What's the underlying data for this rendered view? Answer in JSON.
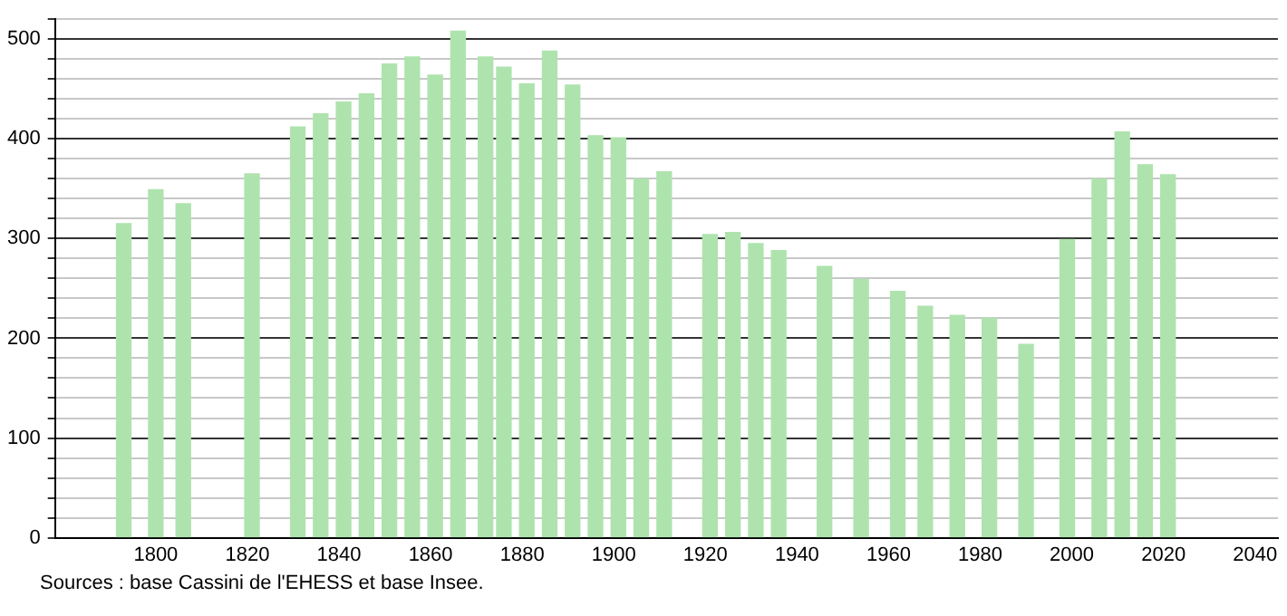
{
  "chart_data": {
    "type": "bar",
    "x": [
      1793,
      1800,
      1806,
      1821,
      1831,
      1836,
      1841,
      1846,
      1851,
      1856,
      1861,
      1866,
      1872,
      1876,
      1881,
      1886,
      1891,
      1896,
      1901,
      1906,
      1911,
      1921,
      1926,
      1931,
      1936,
      1946,
      1954,
      1962,
      1968,
      1975,
      1982,
      1990,
      1999,
      2006,
      2011,
      2016,
      2021
    ],
    "values": [
      315,
      349,
      335,
      365,
      412,
      425,
      437,
      445,
      475,
      482,
      464,
      508,
      482,
      472,
      455,
      488,
      454,
      403,
      401,
      360,
      367,
      304,
      306,
      295,
      288,
      272,
      259,
      247,
      232,
      223,
      220,
      194,
      299,
      360,
      407,
      374,
      364
    ],
    "color": "#aee3ae",
    "xlim": [
      1778,
      2045
    ],
    "xticks": [
      1800,
      1820,
      1840,
      1860,
      1880,
      1900,
      1920,
      1940,
      1960,
      1980,
      2000,
      2020,
      2040
    ],
    "ylim": [
      0,
      520
    ],
    "yticks": [
      0,
      {
        "value": 20,
        "label": null
      },
      {
        "value": 40,
        "label": null
      },
      {
        "value": 60,
        "label": null
      },
      {
        "value": 80,
        "label": null
      },
      100,
      {
        "value": 120,
        "label": null
      },
      {
        "value": 140,
        "label": null
      },
      {
        "value": 160,
        "label": null
      },
      {
        "value": 180,
        "label": null
      },
      200,
      {
        "value": 220,
        "label": null
      },
      {
        "value": 240,
        "label": null
      },
      {
        "value": 260,
        "label": null
      },
      {
        "value": 280,
        "label": null
      },
      300,
      {
        "value": 320,
        "label": null
      },
      {
        "value": 340,
        "label": null
      },
      {
        "value": 360,
        "label": null
      },
      {
        "value": 380,
        "label": null
      },
      400,
      {
        "value": 420,
        "label": null
      },
      {
        "value": 440,
        "label": null
      },
      {
        "value": 460,
        "label": null
      },
      {
        "value": 480,
        "label": null
      },
      500,
      {
        "value": 520,
        "label": null
      }
    ],
    "grid": "y",
    "legend": false,
    "annotations": [
      "Sources : base Cassini de l'EHESS et base Insee."
    ]
  }
}
